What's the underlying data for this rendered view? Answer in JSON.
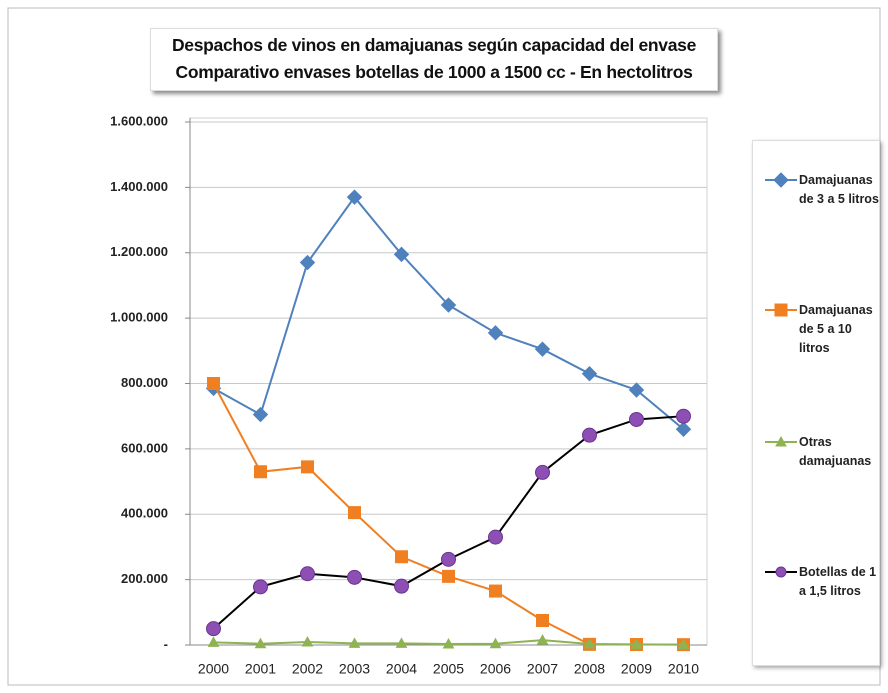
{
  "chart_data": {
    "type": "line",
    "title": "Despachos de vinos en damajuanas según capacidad del envase",
    "subtitle": "Comparativo envases botellas de 1000 a 1500 cc  - En hectolitros",
    "categories": [
      "2000",
      "2001",
      "2002",
      "2003",
      "2004",
      "2005",
      "2006",
      "2007",
      "2008",
      "2009",
      "2010"
    ],
    "series": [
      {
        "name": "Damajuanas de 3 a 5 litros",
        "color": "#4f81bd",
        "marker": "diamond",
        "values": [
          785000,
          705000,
          1170000,
          1370000,
          1195000,
          1040000,
          955000,
          905000,
          830000,
          780000,
          660000
        ]
      },
      {
        "name": "Damajuanas de 5 a 10 litros",
        "color": "#f07f22",
        "marker": "square",
        "values": [
          800000,
          530000,
          545000,
          405000,
          270000,
          210000,
          165000,
          75000,
          2000,
          1500,
          1000
        ]
      },
      {
        "name": "Otras damajuanas",
        "color": "#8fb352",
        "marker": "triangle",
        "values": [
          8000,
          4000,
          9000,
          5000,
          5000,
          3000,
          4000,
          15000,
          3000,
          2000,
          1000
        ]
      },
      {
        "name": "Botellas de 1 a 1,5  litros",
        "color": "#8e4fb5",
        "line_color": "#000000",
        "marker": "circle",
        "values": [
          50000,
          178000,
          218000,
          207000,
          180000,
          262000,
          330000,
          528000,
          642000,
          690000,
          700000
        ]
      }
    ],
    "ylim": [
      0,
      1600000
    ],
    "yticks": [
      {
        "value": 0,
        "label": "-"
      },
      {
        "value": 200000,
        "label": "200.000"
      },
      {
        "value": 400000,
        "label": "400.000"
      },
      {
        "value": 600000,
        "label": "600.000"
      },
      {
        "value": 800000,
        "label": "800.000"
      },
      {
        "value": 1000000,
        "label": "1.000.000"
      },
      {
        "value": 1200000,
        "label": "1.200.000"
      },
      {
        "value": 1400000,
        "label": "1.400.000"
      },
      {
        "value": 1600000,
        "label": "1.600.000"
      }
    ],
    "grid": true,
    "legend": "right"
  }
}
